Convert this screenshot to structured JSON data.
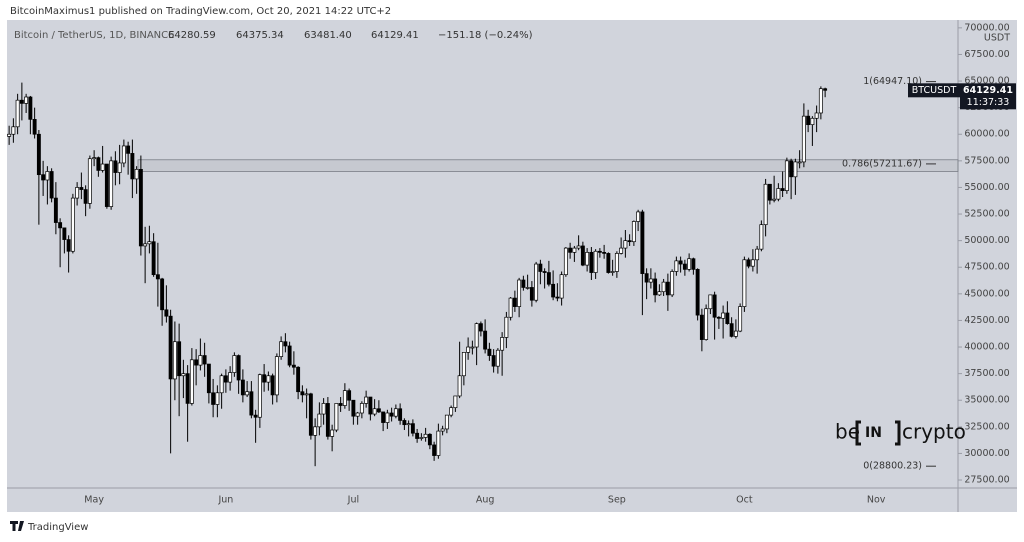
{
  "header": {
    "publisher": "BitcoinMaximus1 published on TradingView.com, Oct 20, 2021 14:22 UTC+2"
  },
  "chart_data": {
    "type": "candlestick",
    "title": "Bitcoin / TetherUS, 1D, BINANCE",
    "ohlc_labels": {
      "open": "64280.59",
      "high": "64375.34",
      "low": "63481.40",
      "close": "64129.41",
      "change": "−151.18 (−0.24%)"
    },
    "currency": "USDT",
    "categories": [
      null,
      null,
      null,
      null,
      null,
      null,
      null,
      null,
      null,
      null,
      null,
      null,
      null,
      null,
      null,
      null,
      null,
      null,
      null,
      null,
      "May",
      null,
      null,
      null,
      null,
      null,
      null,
      null,
      null,
      null,
      null,
      null,
      null,
      null,
      null,
      null,
      null,
      null,
      null,
      null,
      null,
      null,
      null,
      null,
      null,
      null,
      null,
      null,
      null,
      null,
      null,
      "Jun",
      null,
      null,
      null,
      null,
      null,
      null,
      null,
      null,
      null,
      null,
      null,
      null,
      null,
      null,
      null,
      null,
      null,
      null,
      null,
      null,
      null,
      null,
      null,
      null,
      null,
      null,
      null,
      null,
      null,
      "Jul",
      null,
      null,
      null,
      null,
      null,
      null,
      null,
      null,
      null,
      null,
      null,
      null,
      null,
      null,
      null,
      null,
      null,
      null,
      null,
      null,
      null,
      null,
      null,
      null,
      null,
      null,
      null,
      null,
      null,
      null,
      "Aug",
      null,
      null,
      null,
      null,
      null,
      null,
      null,
      null,
      null,
      null,
      null,
      null,
      null,
      null,
      null,
      null,
      null,
      null,
      null,
      null,
      null,
      null,
      null,
      null,
      null,
      null,
      null,
      null,
      null,
      null,
      "Sep",
      null,
      null,
      null,
      null,
      null,
      null,
      null,
      null,
      null,
      null,
      null,
      null,
      null,
      null,
      null,
      null,
      null,
      null,
      null,
      null,
      null,
      null,
      null,
      null,
      null,
      null,
      null,
      null,
      null,
      "Oct",
      null,
      null,
      null,
      null,
      null,
      null,
      null,
      null,
      null,
      null,
      null,
      null,
      null,
      null,
      null,
      null,
      null,
      null,
      null,
      null,
      null,
      null,
      null,
      null,
      null,
      null,
      null,
      null,
      null,
      null,
      "Nov"
    ],
    "open": [
      59800,
      60000,
      60700,
      63200,
      62900,
      63500,
      61400,
      60000,
      56200,
      55700,
      56500,
      54000,
      51700,
      51200,
      50100,
      49000,
      54000,
      55000,
      54800,
      53500,
      57700,
      57800,
      56600,
      57200,
      53200,
      57500,
      56400,
      57300,
      58900,
      58200,
      55800,
      56700,
      49500,
      49700,
      49900,
      46800,
      46400,
      43500,
      42900,
      37000,
      40500,
      37300,
      37500,
      34700,
      38800,
      38300,
      39200,
      38400,
      35700,
      34600,
      35700,
      37300,
      36700,
      37600,
      39200,
      36900,
      35500,
      35800,
      33600,
      33400,
      37400,
      36700,
      37300,
      35500,
      39100,
      40500,
      40100,
      38300,
      38100,
      35800,
      35500,
      35600,
      31700,
      32500,
      33700,
      34700,
      31600,
      32200,
      34700,
      34500,
      35900,
      35000,
      33500,
      33800,
      34700,
      35300,
      33700,
      34200,
      33900,
      32900,
      33800,
      33500,
      34200,
      33100,
      32700,
      32800,
      31900,
      31400,
      31500,
      31800,
      30800,
      29800,
      32100,
      32300,
      33600,
      34300,
      35400,
      37300,
      39500,
      40000,
      40000,
      42200,
      41500,
      39800,
      39200,
      38200,
      39700,
      40900,
      42800,
      44600,
      43800,
      46300,
      45600,
      45600,
      44400,
      47800,
      47100,
      47000,
      45900,
      44700,
      44600,
      46800,
      49300,
      48900,
      49300,
      49500,
      47700,
      48900,
      47000,
      49000,
      48900,
      48800,
      47000,
      47100,
      48800,
      49300,
      50000,
      49900,
      51800,
      52700,
      46900,
      46100,
      46400,
      44900,
      45200,
      46100,
      44900,
      47100,
      48100,
      47800,
      47300,
      48300,
      47300,
      43000,
      40700,
      43600,
      44900,
      42800,
      42700,
      43200,
      42200,
      41000,
      41500,
      43800,
      48200,
      47600,
      48200,
      49200,
      51500,
      55300,
      53800,
      53900,
      54900,
      54700,
      57500,
      56000,
      57400,
      57400,
      61700,
      60900,
      61500,
      62000,
      64280.59,
      null,
      null,
      null,
      null,
      null,
      null,
      null,
      null,
      null,
      null,
      null,
      null
    ],
    "high": [
      60800,
      61500,
      63800,
      64854,
      63800,
      63600,
      62500,
      60400,
      57500,
      57000,
      56800,
      55500,
      52100,
      51200,
      50500,
      54400,
      55500,
      56400,
      55200,
      58000,
      58500,
      57900,
      58900,
      57200,
      57900,
      58400,
      59000,
      59500,
      59300,
      59500,
      57000,
      58000,
      51300,
      51400,
      50700,
      49800,
      46500,
      45800,
      43500,
      42400,
      42200,
      38800,
      38300,
      39900,
      39800,
      40800,
      40400,
      38400,
      37000,
      36400,
      37500,
      37900,
      38200,
      39500,
      39300,
      37900,
      36800,
      36800,
      34100,
      37500,
      38400,
      37700,
      37500,
      39400,
      41000,
      41300,
      40500,
      39600,
      38200,
      36400,
      36100,
      35700,
      33300,
      34800,
      35200,
      35300,
      32700,
      34700,
      35300,
      36600,
      36100,
      35000,
      33900,
      34900,
      35900,
      35300,
      35100,
      35000,
      33900,
      34100,
      34300,
      34600,
      34700,
      33300,
      33100,
      33200,
      32300,
      31900,
      32400,
      31900,
      31100,
      32800,
      32600,
      33600,
      34500,
      35400,
      40500,
      39500,
      40900,
      40600,
      42300,
      42400,
      42600,
      40400,
      39800,
      39900,
      41400,
      43300,
      44700,
      45300,
      46500,
      46700,
      46800,
      46200,
      48000,
      48200,
      47400,
      48100,
      47200,
      46000,
      47100,
      49400,
      49800,
      49500,
      50500,
      49900,
      49300,
      49400,
      49200,
      49300,
      49600,
      48900,
      48200,
      49000,
      50300,
      51000,
      50600,
      51900,
      52900,
      52900,
      47400,
      47400,
      47000,
      45900,
      46400,
      46900,
      47300,
      48500,
      48500,
      48200,
      48800,
      48400,
      47400,
      43600,
      44000,
      44900,
      45200,
      42900,
      43900,
      44300,
      42800,
      42600,
      44100,
      48500,
      48400,
      49200,
      49500,
      51900,
      55800,
      55300,
      56100,
      55400,
      56500,
      57800,
      57700,
      57700,
      58500,
      62900,
      62300,
      61700,
      62700,
      64500,
      64375.34,
      null,
      null,
      null,
      null,
      null,
      null,
      null,
      null,
      null,
      null,
      null,
      null
    ],
    "low": [
      59000,
      59200,
      60000,
      61300,
      62000,
      60000,
      59600,
      51500,
      54200,
      53400,
      53600,
      50600,
      47500,
      48800,
      47000,
      48800,
      53300,
      53900,
      52300,
      53000,
      57000,
      56000,
      56400,
      53000,
      52900,
      55200,
      55300,
      56900,
      56200,
      54000,
      54400,
      48600,
      46000,
      48800,
      46600,
      43800,
      42000,
      42300,
      30000,
      35000,
      33500,
      35200,
      31100,
      34500,
      36400,
      37800,
      37200,
      34700,
      33400,
      33400,
      34200,
      35700,
      35900,
      37200,
      35600,
      34800,
      35300,
      33300,
      31000,
      32400,
      35800,
      35900,
      34600,
      34800,
      38800,
      39500,
      38100,
      37400,
      35100,
      34800,
      33300,
      31300,
      28800,
      31700,
      32700,
      31300,
      30200,
      32000,
      33900,
      34200,
      34000,
      32700,
      32700,
      33300,
      34300,
      33100,
      33500,
      33800,
      32100,
      32300,
      33000,
      33300,
      32700,
      32200,
      31600,
      31600,
      31000,
      31200,
      31100,
      30400,
      29300,
      29500,
      31700,
      31900,
      33400,
      33900,
      35200,
      36400,
      38800,
      39300,
      38300,
      41000,
      39400,
      38700,
      37600,
      37500,
      37300,
      39900,
      42500,
      43300,
      42800,
      45300,
      45400,
      43800,
      44200,
      45900,
      45500,
      45700,
      44400,
      44300,
      43900,
      46600,
      48300,
      48000,
      49100,
      47600,
      47100,
      46300,
      46400,
      48400,
      48300,
      46900,
      46700,
      46500,
      48700,
      48400,
      49500,
      49500,
      50900,
      43000,
      44500,
      45500,
      44200,
      44800,
      44800,
      43400,
      44700,
      46700,
      47000,
      46700,
      47100,
      46800,
      42500,
      39600,
      40600,
      43100,
      40700,
      41700,
      40800,
      42100,
      40900,
      40800,
      41400,
      43300,
      47400,
      47100,
      46900,
      49000,
      50400,
      53400,
      53600,
      53700,
      54100,
      54400,
      53900,
      54300,
      56800,
      56900,
      60200,
      58900,
      60200,
      61400,
      63481.4,
      null,
      null,
      null,
      null,
      null,
      null,
      null,
      null,
      null,
      null,
      null,
      null
    ],
    "close": [
      60000,
      60700,
      63200,
      62900,
      63500,
      61400,
      60000,
      56200,
      55700,
      56500,
      54000,
      51700,
      51200,
      50100,
      49000,
      54000,
      55000,
      54800,
      53500,
      57700,
      57800,
      56600,
      57200,
      53200,
      57500,
      56400,
      57300,
      58900,
      58200,
      55800,
      56700,
      49500,
      49700,
      49900,
      46800,
      46400,
      43500,
      42900,
      37000,
      40500,
      37300,
      37500,
      34700,
      38800,
      38300,
      39200,
      38400,
      35700,
      34600,
      35700,
      37300,
      36700,
      37600,
      39200,
      36900,
      35500,
      35800,
      33600,
      33400,
      37400,
      36700,
      37300,
      35500,
      39100,
      40500,
      40100,
      38300,
      38100,
      35800,
      35500,
      35600,
      31700,
      32500,
      33700,
      34700,
      31600,
      32200,
      34700,
      34500,
      35900,
      35000,
      33500,
      33800,
      34700,
      35300,
      33700,
      34200,
      33900,
      32900,
      33800,
      33500,
      34200,
      33100,
      32700,
      32800,
      31900,
      31400,
      31500,
      31800,
      30800,
      29800,
      32100,
      32300,
      33600,
      34300,
      35400,
      37300,
      39500,
      40000,
      40000,
      42200,
      41500,
      39800,
      39200,
      38200,
      39700,
      40900,
      42800,
      44600,
      43800,
      46300,
      45600,
      45600,
      44400,
      47800,
      47100,
      47000,
      45900,
      44700,
      44600,
      46800,
      49300,
      48900,
      49300,
      49500,
      47700,
      48900,
      47000,
      49000,
      48900,
      48800,
      47000,
      47100,
      48800,
      49300,
      50000,
      49900,
      51800,
      52700,
      46900,
      46100,
      46400,
      44900,
      45200,
      46100,
      44900,
      47100,
      48100,
      47800,
      47300,
      48300,
      47300,
      43000,
      40700,
      43600,
      44900,
      42800,
      42700,
      43200,
      42200,
      41000,
      41500,
      43800,
      48200,
      47600,
      48200,
      49200,
      51500,
      55300,
      53800,
      53900,
      54900,
      54700,
      57500,
      56000,
      57400,
      57400,
      61700,
      60900,
      61500,
      62000,
      64280.59,
      64129.41,
      null,
      null,
      null,
      null,
      null,
      null,
      null,
      null,
      null,
      null,
      null,
      null
    ],
    "up_color": "#ffffff",
    "down_color": "#000000",
    "ylim": [
      26750,
      70550
    ],
    "yticks": [
      {
        "value": 27500,
        "label": "27500.00"
      },
      {
        "value": 30000,
        "label": "30000.00"
      },
      {
        "value": 32500,
        "label": "32500.00"
      },
      {
        "value": 35000,
        "label": "35000.00"
      },
      {
        "value": 37500,
        "label": "37500.00"
      },
      {
        "value": 40000,
        "label": "40000.00"
      },
      {
        "value": 42500,
        "label": "42500.00"
      },
      {
        "value": 45000,
        "label": "45000.00"
      },
      {
        "value": 47500,
        "label": "47500.00"
      },
      {
        "value": 50000,
        "label": "50000.00"
      },
      {
        "value": 52500,
        "label": "52500.00"
      },
      {
        "value": 55000,
        "label": "55000.00"
      },
      {
        "value": 57500,
        "label": "57500.00"
      },
      {
        "value": 60000,
        "label": "60000.00"
      },
      {
        "value": 62500,
        "label": "62500.00"
      },
      {
        "value": 65000,
        "label": "65000.00"
      },
      {
        "value": 67500,
        "label": "67500.00"
      },
      {
        "value": 70000,
        "label": "70000.00"
      }
    ],
    "fib_levels": [
      {
        "value": 64947.1,
        "label": "1(64947.10)"
      },
      {
        "value": 57211.67,
        "label": "0.786(57211.67)"
      },
      {
        "value": 28800.23,
        "label": "0(28800.23)"
      }
    ],
    "zone": [
      56500,
      57600
    ],
    "last_price": {
      "symbol": "BTCUSDT",
      "value": 64129.41,
      "label": "64129.41",
      "countdown": "11:37:33"
    }
  },
  "logo": {
    "left": "be",
    "middle": "IN",
    "right": "crypto"
  },
  "footer": {
    "brand": "TradingView"
  }
}
